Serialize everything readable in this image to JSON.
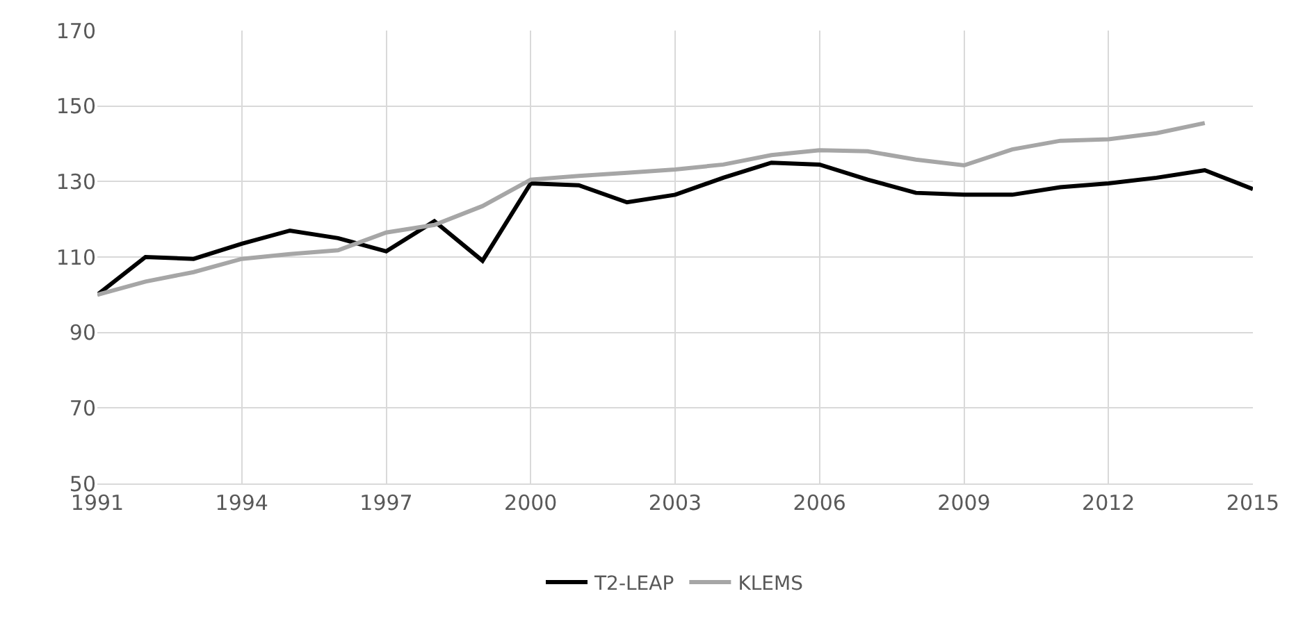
{
  "chart_data": {
    "type": "line",
    "x": [
      1991,
      1992,
      1993,
      1994,
      1995,
      1996,
      1997,
      1998,
      1999,
      2000,
      2001,
      2002,
      2003,
      2004,
      2005,
      2006,
      2007,
      2008,
      2009,
      2010,
      2011,
      2012,
      2013,
      2014,
      2015
    ],
    "series": [
      {
        "name": "T2-LEAP",
        "color": "#000000",
        "values": [
          100,
          110,
          109.5,
          113.5,
          117,
          115,
          111.5,
          119.5,
          109,
          129.5,
          129,
          124.5,
          126.5,
          131,
          135,
          134.5,
          130.5,
          127,
          126.5,
          126.5,
          128.5,
          129.5,
          131,
          133,
          128
        ]
      },
      {
        "name": "KLEMS",
        "color": "#a6a6a6",
        "values": [
          100,
          103.5,
          106,
          109.5,
          110.8,
          111.8,
          116.5,
          118.5,
          123.5,
          130.5,
          131.5,
          132.3,
          133.2,
          134.5,
          137,
          138.3,
          138,
          135.8,
          134.3,
          138.5,
          140.8,
          141.2,
          142.8,
          145.5,
          null
        ]
      }
    ],
    "xlim": [
      1991,
      2015
    ],
    "xticks": [
      1991,
      1994,
      1997,
      2000,
      2003,
      2006,
      2009,
      2012,
      2015
    ],
    "ylim": [
      50,
      170
    ],
    "yticks": [
      50,
      70,
      90,
      110,
      130,
      150,
      170
    ],
    "grid": true,
    "legend": "bottom",
    "marker": "none",
    "line_style": "solid"
  }
}
